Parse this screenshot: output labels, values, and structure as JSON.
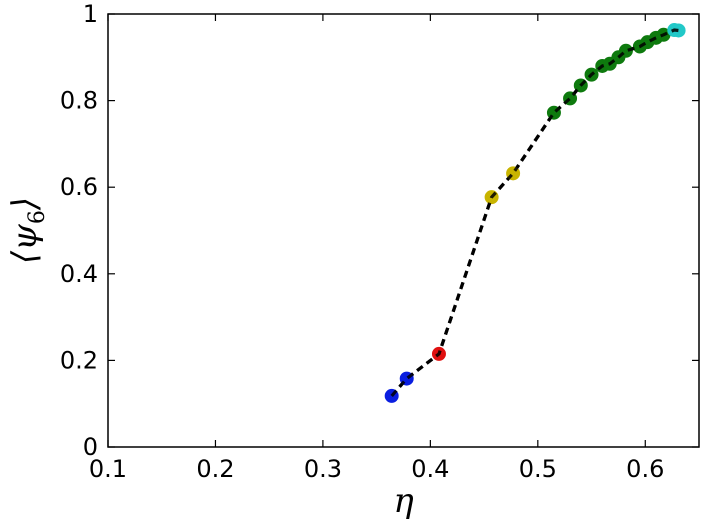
{
  "chart_data": {
    "type": "scatter",
    "xlabel": "η",
    "ylabel": "⟨ψ₆⟩",
    "ylabel_parts": {
      "left": "⟨",
      "symbol": "ψ",
      "sub": "6",
      "right": "⟩"
    },
    "xlim": [
      0.1,
      0.65
    ],
    "ylim": [
      0,
      1
    ],
    "xticks": [
      0.1,
      0.2,
      0.3,
      0.4,
      0.5,
      0.6
    ],
    "xtick_labels": [
      "0.1",
      "0.2",
      "0.3",
      "0.4",
      "0.5",
      "0.6"
    ],
    "yticks": [
      0,
      0.2,
      0.4,
      0.6,
      0.8,
      1
    ],
    "ytick_labels": [
      "0",
      "0.2",
      "0.4",
      "0.6",
      "0.8",
      "1"
    ],
    "grid": false,
    "connector_line": {
      "style": "dashed",
      "color": "#000000"
    },
    "series": [
      {
        "color": "#0a1ee0",
        "points": [
          {
            "x": 0.364,
            "y": 0.118
          },
          {
            "x": 0.378,
            "y": 0.158
          }
        ]
      },
      {
        "color": "#e01010",
        "points": [
          {
            "x": 0.408,
            "y": 0.215
          }
        ]
      },
      {
        "color": "#c8b400",
        "points": [
          {
            "x": 0.457,
            "y": 0.577
          },
          {
            "x": 0.477,
            "y": 0.632
          }
        ]
      },
      {
        "color": "#0e7a0e",
        "points": [
          {
            "x": 0.515,
            "y": 0.772
          },
          {
            "x": 0.53,
            "y": 0.805
          },
          {
            "x": 0.54,
            "y": 0.835
          },
          {
            "x": 0.55,
            "y": 0.86
          },
          {
            "x": 0.56,
            "y": 0.88
          },
          {
            "x": 0.567,
            "y": 0.885
          },
          {
            "x": 0.575,
            "y": 0.9
          },
          {
            "x": 0.582,
            "y": 0.915
          },
          {
            "x": 0.595,
            "y": 0.925
          },
          {
            "x": 0.602,
            "y": 0.935
          },
          {
            "x": 0.61,
            "y": 0.945
          },
          {
            "x": 0.617,
            "y": 0.952
          }
        ]
      },
      {
        "color": "#22c8c8",
        "points": [
          {
            "x": 0.627,
            "y": 0.963
          },
          {
            "x": 0.631,
            "y": 0.962
          }
        ]
      }
    ]
  }
}
